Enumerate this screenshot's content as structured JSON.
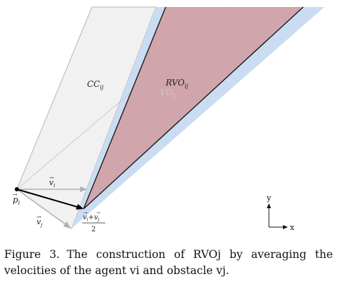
{
  "figure": {
    "labels": {
      "cc": "CC",
      "cc_sub": "ij",
      "rvo": "RVO",
      "rvo_sub": "ij",
      "vo": "VO",
      "vo_sub": "ij",
      "pi": "p",
      "pi_sub": "i",
      "vi": "v",
      "vi_sub": "i",
      "vj": "v",
      "vj_sub": "j",
      "avg_num_a": "v",
      "avg_num_a_sub": "i",
      "avg_plus": "+",
      "avg_num_b": "v",
      "avg_num_b_sub": "j",
      "avg_den": "2",
      "arrow_glyph": "→"
    },
    "axes": {
      "x": "x",
      "y": "y"
    },
    "colors": {
      "cc_fill": "#f1f1f1",
      "cc_edge": "#b4b4b4",
      "vo_fill": "#c7daf1",
      "rvo_fill": "#d1a1a8",
      "rvo_edge": "#1a1a1a",
      "vector": "#b0b0b0"
    }
  },
  "caption": {
    "figure_number": "Figure 3.",
    "text": "The construction of RVOj by averaging the velocities of the agent vi and obstacle vj."
  }
}
